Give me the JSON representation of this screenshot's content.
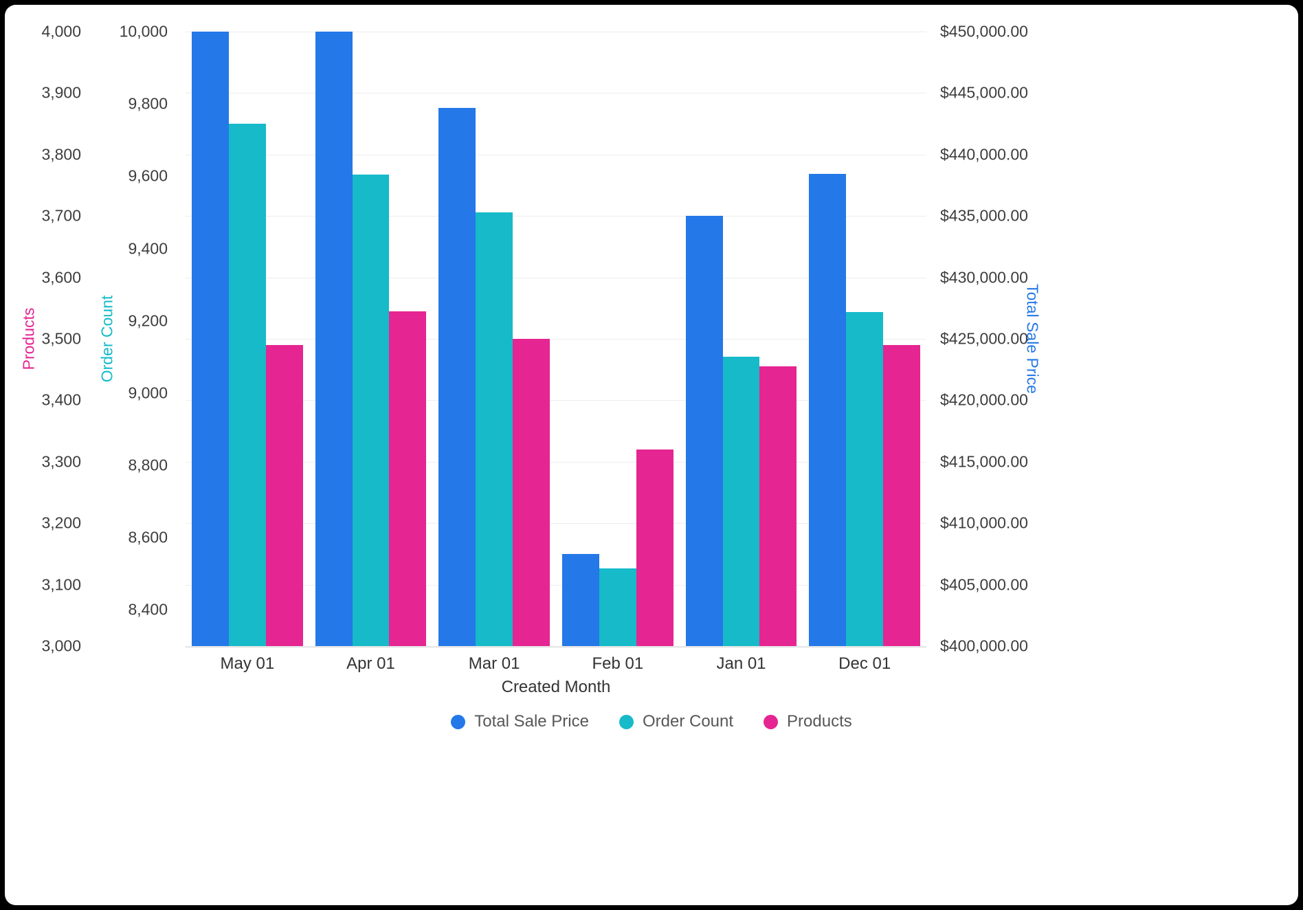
{
  "chart_data": {
    "type": "bar",
    "title": "",
    "xlabel": "Created Month",
    "grid": true,
    "legend_position": "bottom",
    "categories": [
      "May 01",
      "Apr 01",
      "Mar 01",
      "Feb 01",
      "Jan 01",
      "Dec 01"
    ],
    "series": [
      {
        "name": "Total Sale Price",
        "axis": "price",
        "color": "#2478e8",
        "values": [
          450000,
          450000,
          443800,
          407500,
          435000,
          438400
        ]
      },
      {
        "name": "Order Count",
        "axis": "orders",
        "color": "#16bac9",
        "values": [
          9745,
          9605,
          9500,
          8515,
          9100,
          9225
        ]
      },
      {
        "name": "Products",
        "axis": "products",
        "color": "#e52592",
        "values": [
          3490,
          3545,
          3500,
          3320,
          3455,
          3490
        ]
      }
    ],
    "axes": {
      "products": {
        "label": "Products",
        "color": "#e52592",
        "min": 3000,
        "max": 4000,
        "ticks": [
          {
            "value": 3000,
            "label": "3,000"
          },
          {
            "value": 3100,
            "label": "3,100"
          },
          {
            "value": 3200,
            "label": "3,200"
          },
          {
            "value": 3300,
            "label": "3,300"
          },
          {
            "value": 3400,
            "label": "3,400"
          },
          {
            "value": 3500,
            "label": "3,500"
          },
          {
            "value": 3600,
            "label": "3,600"
          },
          {
            "value": 3700,
            "label": "3,700"
          },
          {
            "value": 3800,
            "label": "3,800"
          },
          {
            "value": 3900,
            "label": "3,900"
          },
          {
            "value": 4000,
            "label": "4,000"
          }
        ]
      },
      "orders": {
        "label": "Order Count",
        "color": "#16bac9",
        "min": 8300,
        "max": 10000,
        "ticks": [
          {
            "value": 8400,
            "label": "8,400"
          },
          {
            "value": 8600,
            "label": "8,600"
          },
          {
            "value": 8800,
            "label": "8,800"
          },
          {
            "value": 9000,
            "label": "9,000"
          },
          {
            "value": 9200,
            "label": "9,200"
          },
          {
            "value": 9400,
            "label": "9,400"
          },
          {
            "value": 9600,
            "label": "9,600"
          },
          {
            "value": 9800,
            "label": "9,800"
          },
          {
            "value": 10000,
            "label": "10,000"
          }
        ]
      },
      "price": {
        "label": "Total Sale Price",
        "color": "#2478e8",
        "min": 400000,
        "max": 450000,
        "ticks": [
          {
            "value": 400000,
            "label": "$400,000.00"
          },
          {
            "value": 405000,
            "label": "$405,000.00"
          },
          {
            "value": 410000,
            "label": "$410,000.00"
          },
          {
            "value": 415000,
            "label": "$415,000.00"
          },
          {
            "value": 420000,
            "label": "$420,000.00"
          },
          {
            "value": 425000,
            "label": "$425,000.00"
          },
          {
            "value": 430000,
            "label": "$430,000.00"
          },
          {
            "value": 435000,
            "label": "$435,000.00"
          },
          {
            "value": 440000,
            "label": "$440,000.00"
          },
          {
            "value": 445000,
            "label": "$445,000.00"
          },
          {
            "value": 450000,
            "label": "$450,000.00"
          }
        ]
      }
    }
  }
}
